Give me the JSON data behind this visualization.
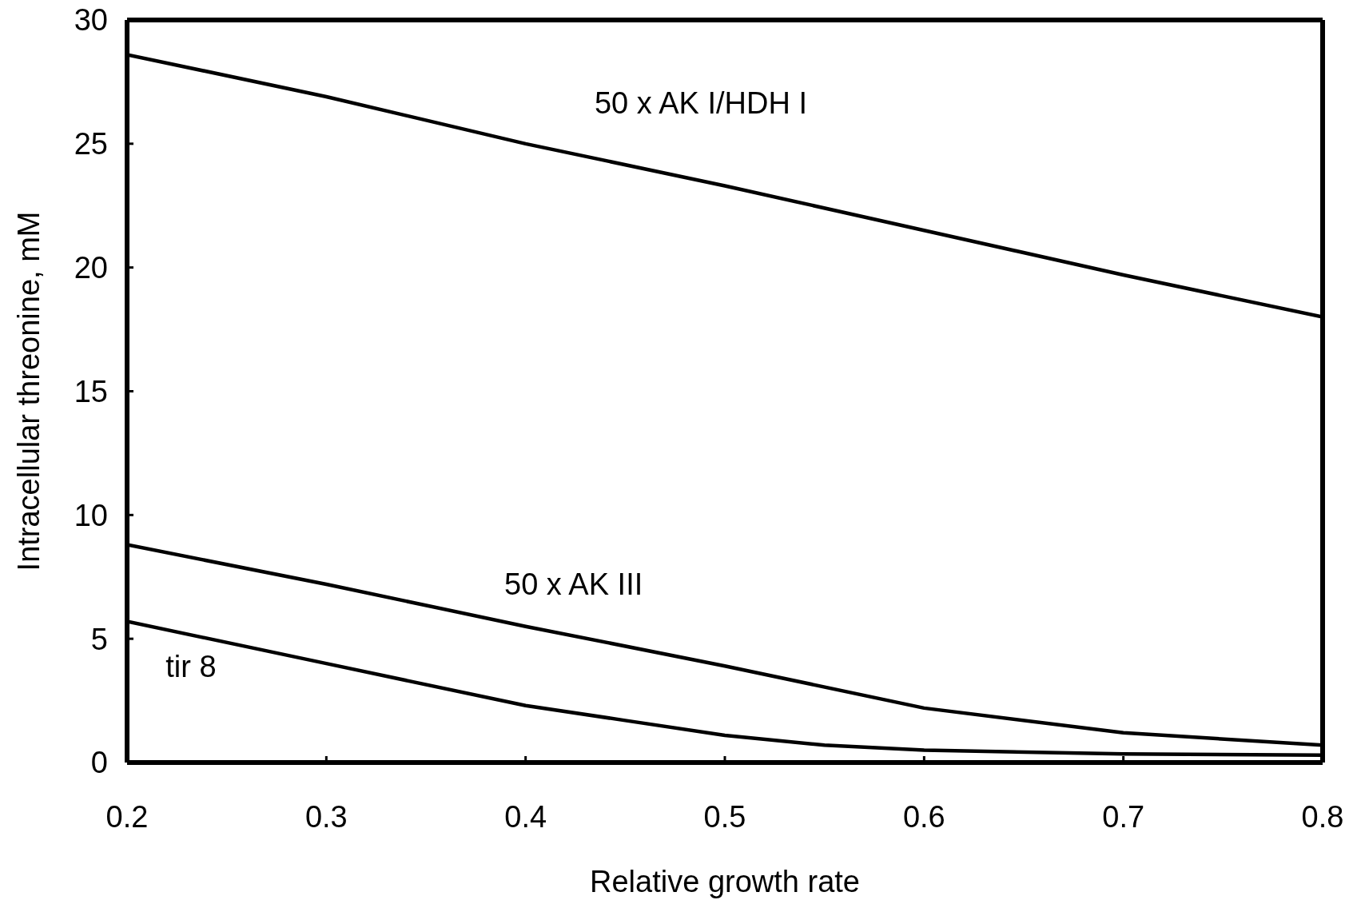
{
  "chart_data": {
    "type": "line",
    "xlabel": "Relative growth rate",
    "ylabel": "Intracellular threonine, mM",
    "xlim": [
      0.2,
      0.8
    ],
    "xticks": [
      0.2,
      0.3,
      0.4,
      0.5,
      0.6,
      0.7,
      0.8
    ],
    "ylim": [
      0,
      30
    ],
    "yticks": [
      0,
      5,
      10,
      15,
      20,
      25,
      30
    ],
    "marker": "none",
    "line_style": "solid",
    "series": [
      {
        "name": "50 x AK I/HDH I",
        "color": "#000000",
        "x": [
          0.2,
          0.3,
          0.4,
          0.5,
          0.6,
          0.7,
          0.8
        ],
        "values": [
          28.6,
          26.9,
          25.0,
          23.3,
          21.5,
          19.7,
          18.0
        ]
      },
      {
        "name": "50 x AK III",
        "color": "#000000",
        "x": [
          0.2,
          0.3,
          0.4,
          0.5,
          0.6,
          0.7,
          0.8
        ],
        "values": [
          8.8,
          7.2,
          5.5,
          3.9,
          2.2,
          1.2,
          0.7
        ]
      },
      {
        "name": "tir 8",
        "color": "#000000",
        "x": [
          0.2,
          0.3,
          0.4,
          0.45,
          0.5,
          0.55,
          0.6,
          0.7,
          0.8
        ],
        "values": [
          5.7,
          4.0,
          2.3,
          1.7,
          1.1,
          0.7,
          0.5,
          0.35,
          0.3
        ]
      }
    ]
  }
}
